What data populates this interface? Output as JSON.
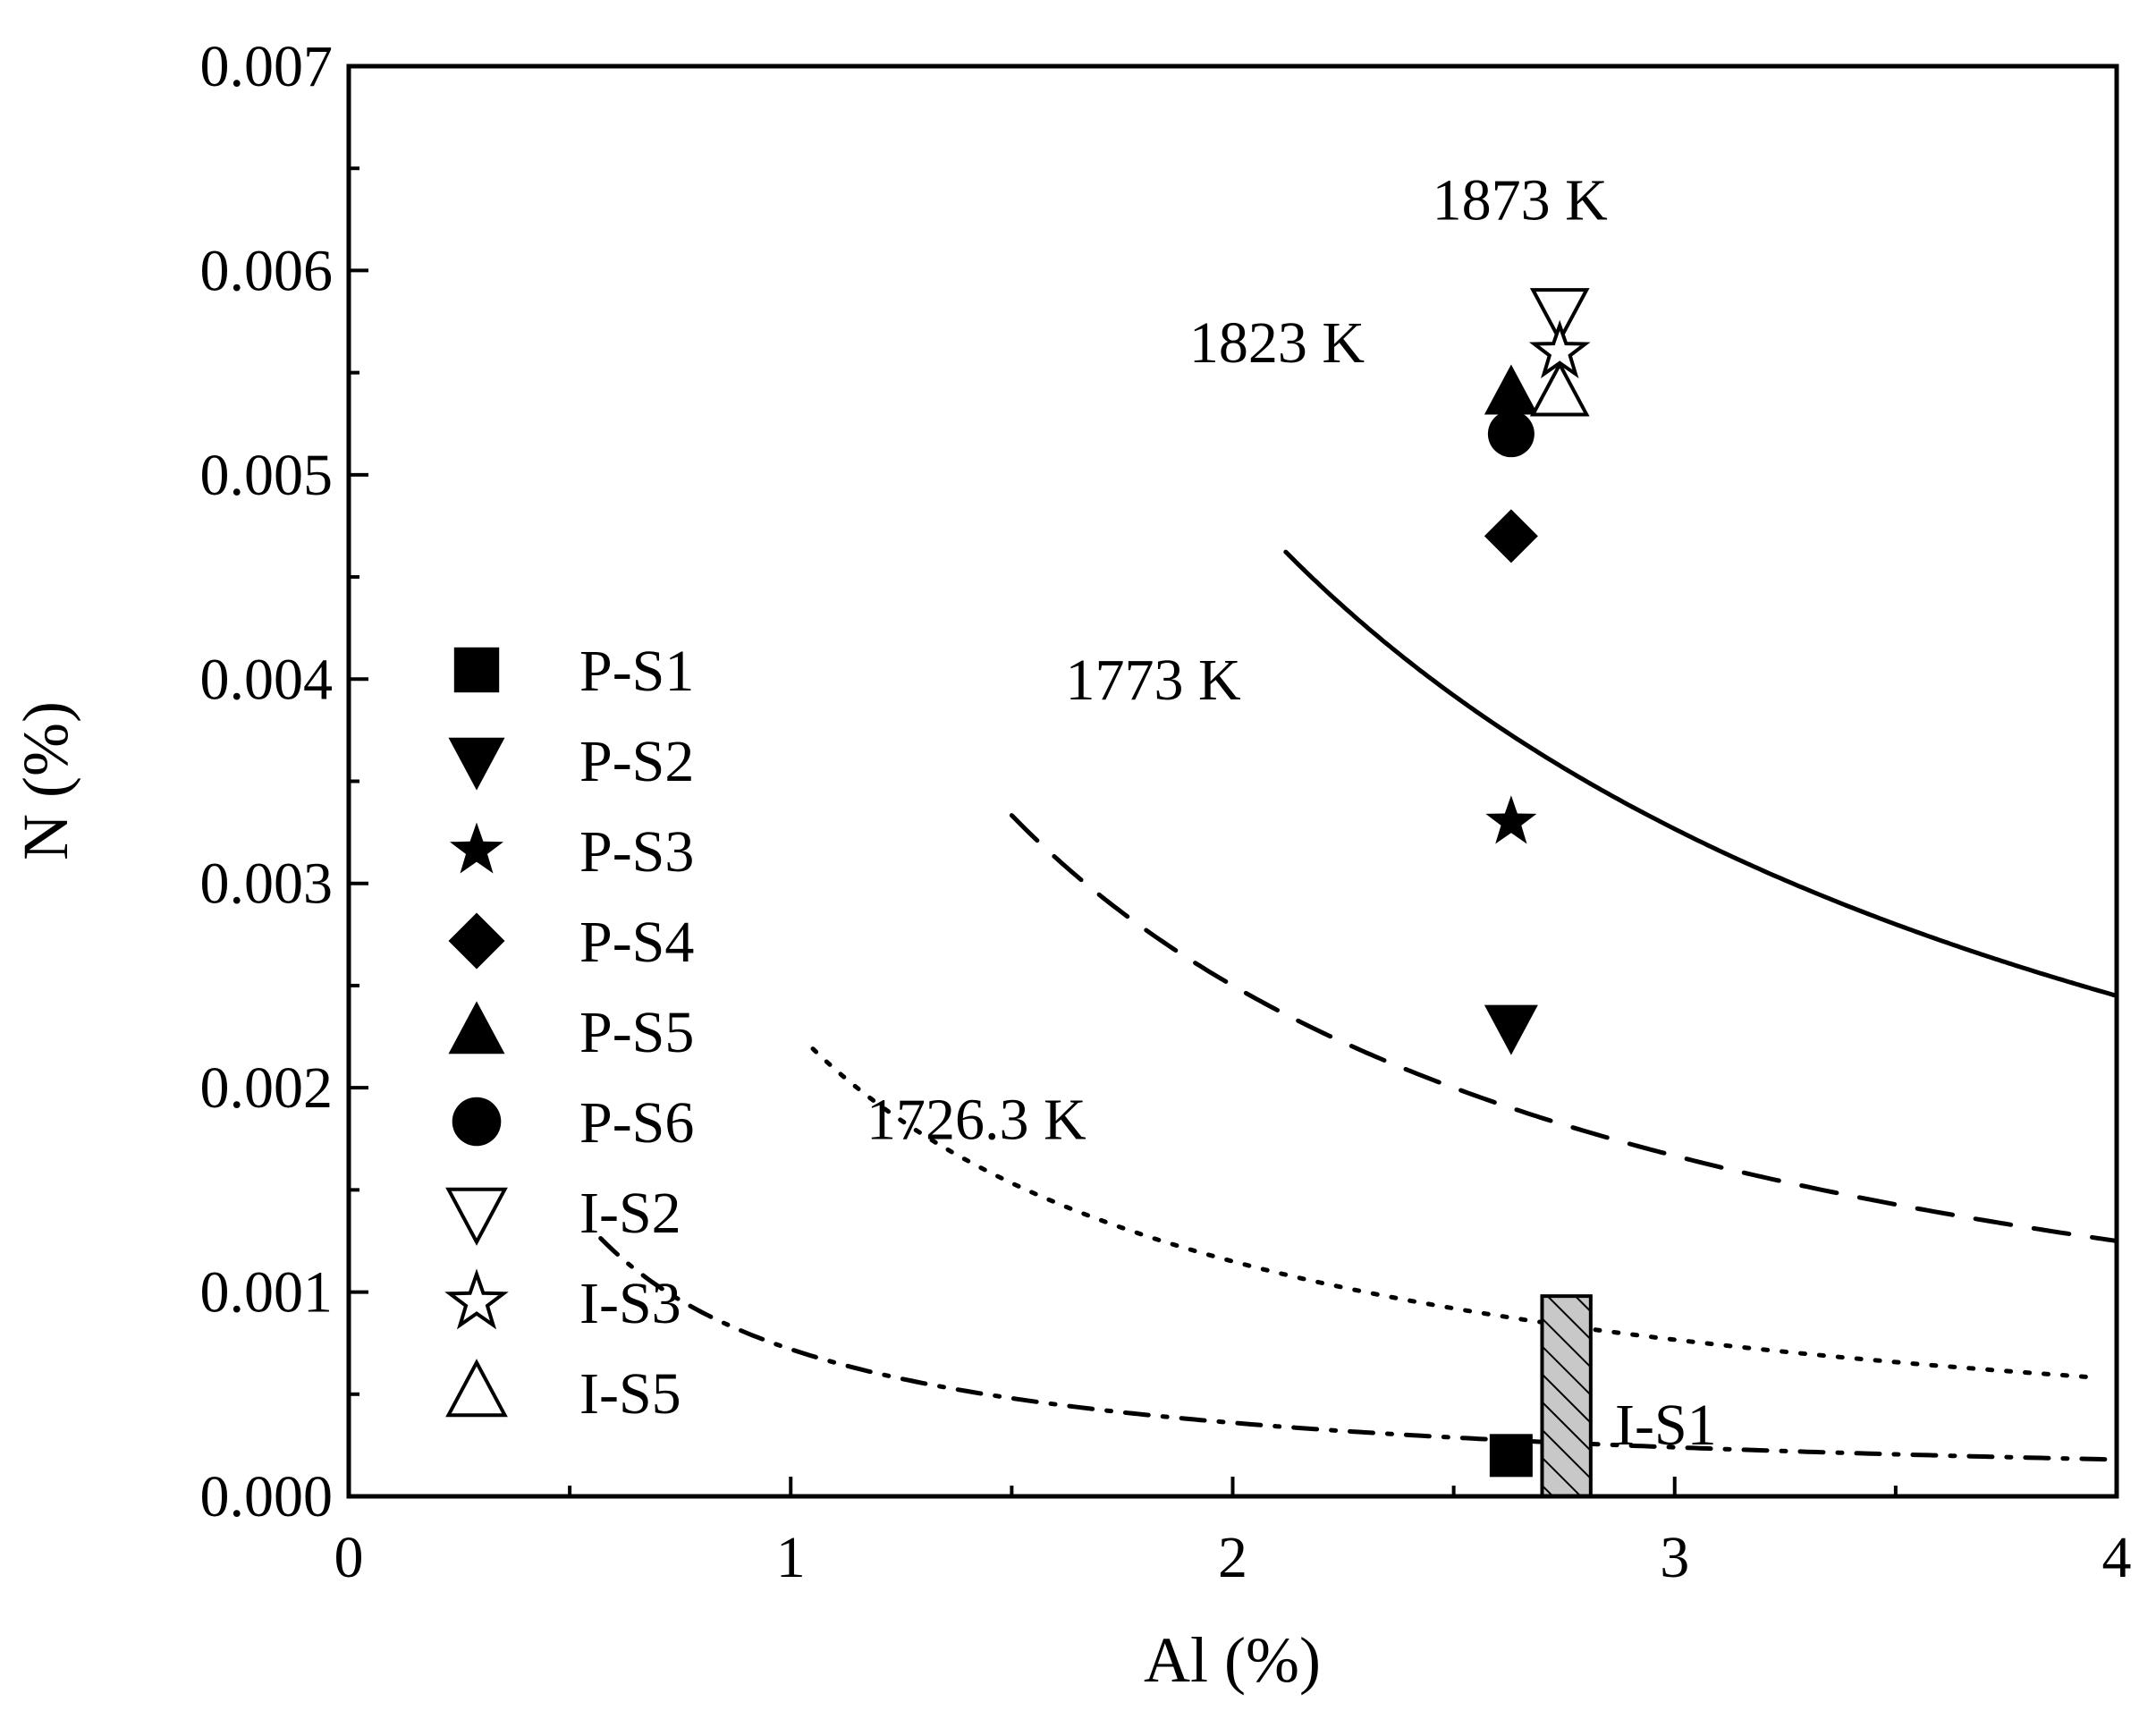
{
  "chart_data": {
    "type": "scatter",
    "xlabel": "Al (%)",
    "ylabel": "N (%)",
    "xlim": [
      0,
      4
    ],
    "ylim": [
      0,
      0.007
    ],
    "x_ticks": [
      {
        "value": 0,
        "label": "0"
      },
      {
        "value": 1,
        "label": "1"
      },
      {
        "value": 2,
        "label": "2"
      },
      {
        "value": 3,
        "label": "3"
      },
      {
        "value": 4,
        "label": "4"
      }
    ],
    "y_ticks": [
      {
        "value": 0,
        "label": "0.000"
      },
      {
        "value": 0.001,
        "label": "0.001"
      },
      {
        "value": 0.002,
        "label": "0.002"
      },
      {
        "value": 0.003,
        "label": "0.003"
      },
      {
        "value": 0.004,
        "label": "0.004"
      },
      {
        "value": 0.005,
        "label": "0.005"
      },
      {
        "value": 0.006,
        "label": "0.006"
      },
      {
        "value": 0.007,
        "label": "0.007"
      }
    ],
    "curves": [
      {
        "name": "1873 K",
        "k": 0.0098,
        "x_min": 2.12,
        "x_max": 4.0,
        "style": "solid",
        "label": {
          "text": "1873 K",
          "x": 2.65,
          "y": 0.00625
        }
      },
      {
        "name": "1823 K",
        "k": 0.005,
        "x_min": 1.5,
        "x_max": 4.0,
        "style": "dash",
        "label": {
          "text": "1823 K",
          "x": 2.1,
          "y": 0.00555
        }
      },
      {
        "name": "1773 K",
        "k": 0.0023,
        "x_min": 1.05,
        "x_max": 3.95,
        "style": "dot",
        "label": {
          "text": "1773 K",
          "x": 1.82,
          "y": 0.0039
        }
      },
      {
        "name": "1726.3 K",
        "k": 0.00072,
        "x_min": 0.57,
        "x_max": 4.0,
        "style": "dashdot",
        "label": {
          "text": "1726.3 K",
          "x": 1.42,
          "y": 0.00175
        }
      }
    ],
    "series": [
      {
        "name": "P-S1",
        "marker": "square",
        "filled": true,
        "points": [
          [
            2.63,
            0.0002
          ]
        ]
      },
      {
        "name": "P-S2",
        "marker": "triangle-down",
        "filled": true,
        "points": [
          [
            2.63,
            0.0023
          ]
        ]
      },
      {
        "name": "P-S3",
        "marker": "star",
        "filled": true,
        "points": [
          [
            2.63,
            0.0033
          ]
        ]
      },
      {
        "name": "P-S4",
        "marker": "diamond",
        "filled": true,
        "points": [
          [
            2.63,
            0.0047
          ]
        ]
      },
      {
        "name": "P-S5",
        "marker": "triangle-up",
        "filled": true,
        "points": [
          [
            2.63,
            0.0054
          ]
        ]
      },
      {
        "name": "P-S6",
        "marker": "circle",
        "filled": true,
        "points": [
          [
            2.63,
            0.0052
          ]
        ]
      },
      {
        "name": "I-S2",
        "marker": "triangle-down",
        "filled": false,
        "points": [
          [
            2.74,
            0.0058
          ]
        ]
      },
      {
        "name": "I-S3",
        "marker": "star",
        "filled": false,
        "points": [
          [
            2.74,
            0.0056
          ]
        ]
      },
      {
        "name": "I-S5",
        "marker": "triangle-up",
        "filled": false,
        "points": [
          [
            2.74,
            0.0054
          ]
        ]
      }
    ],
    "range_bar": {
      "name": "I-S1",
      "x_min": 2.7,
      "x_max": 2.81,
      "y_min": 0,
      "y_max": 0.00098,
      "label": {
        "text": "I-S1",
        "x": 2.98,
        "y": 0.00035
      }
    },
    "legend": {
      "position": "left-center"
    },
    "grid": false
  }
}
